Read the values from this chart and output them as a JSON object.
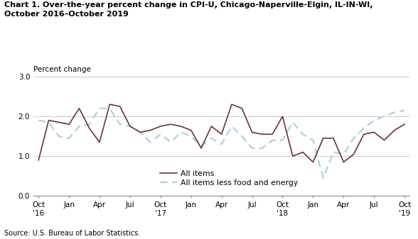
{
  "title_line1": "Chart 1. Over-the-year percent change in CPI-U, Chicago-Naperville-Elgin, IL-IN-WI,",
  "title_line2": "October 2016–October 2019",
  "ylabel": "Percent change",
  "source": "Source: U.S. Bureau of Labor Statistics.",
  "ylim": [
    0.0,
    3.0
  ],
  "yticks": [
    0.0,
    1.0,
    2.0,
    3.0
  ],
  "all_items": [
    0.9,
    1.9,
    1.85,
    1.8,
    2.2,
    1.7,
    1.35,
    2.3,
    2.25,
    1.75,
    1.6,
    1.65,
    1.75,
    1.8,
    1.75,
    1.65,
    1.2,
    1.75,
    1.55,
    2.3,
    2.2,
    1.6,
    1.55,
    1.55,
    2.0,
    1.0,
    1.1,
    0.85,
    1.45,
    1.45,
    0.85,
    1.05,
    1.55,
    1.6,
    1.4,
    1.65,
    1.8
  ],
  "all_items_less": [
    1.9,
    1.85,
    1.5,
    1.45,
    1.75,
    1.8,
    2.2,
    2.2,
    1.8,
    1.75,
    1.6,
    1.35,
    1.55,
    1.35,
    1.6,
    1.5,
    1.25,
    1.45,
    1.3,
    1.75,
    1.5,
    1.2,
    1.2,
    1.4,
    1.4,
    1.85,
    1.55,
    1.4,
    0.45,
    1.1,
    1.05,
    1.45,
    1.7,
    1.9,
    2.0,
    2.1,
    2.15
  ],
  "color_all_items": "#722F37",
  "color_less": "#a8cfe0",
  "tick_labels": [
    "Oct\n'16",
    "Jan",
    "Apr",
    "Jul",
    "Oct\n'17",
    "Jan",
    "Apr",
    "Jul",
    "Oct\n'18",
    "Jan",
    "Apr",
    "Jul",
    "Oct\n'19"
  ],
  "tick_positions": [
    0,
    3,
    6,
    9,
    12,
    15,
    18,
    21,
    24,
    27,
    30,
    33,
    36
  ],
  "title_fontsize": 8.0,
  "label_fontsize": 7.5,
  "tick_fontsize": 7.5,
  "source_fontsize": 7.0
}
